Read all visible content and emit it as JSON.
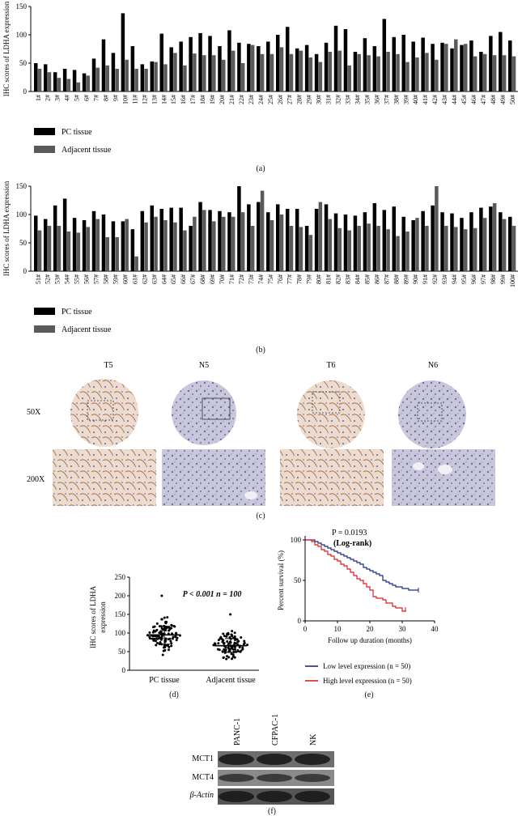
{
  "figure": {
    "captions": {
      "a": "(a)",
      "b": "(b)",
      "c": "(c)",
      "d": "(d)",
      "e": "(e)",
      "f": "(f)"
    }
  },
  "colors": {
    "pc": "#000000",
    "adjacent": "#5a5a5a",
    "low": "#1a2a80",
    "high": "#d81f26",
    "stain_brown": "#a86a48",
    "stain_blue": "#8d8cb6"
  },
  "chart_data": [
    {
      "id": "a",
      "type": "bar",
      "ylabel": "IHC scores of LDHA expression",
      "ylim": [
        0,
        150
      ],
      "yticks": [
        0,
        50,
        100,
        150
      ],
      "categories": [
        "1#",
        "2#",
        "3#",
        "4#",
        "5#",
        "6#",
        "7#",
        "8#",
        "9#",
        "10#",
        "11#",
        "12#",
        "13#",
        "14#",
        "15#",
        "16#",
        "17#",
        "18#",
        "19#",
        "20#",
        "21#",
        "22#",
        "23#",
        "24#",
        "25#",
        "26#",
        "27#",
        "28#",
        "29#",
        "30#",
        "31#",
        "32#",
        "33#",
        "34#",
        "35#",
        "36#",
        "37#",
        "38#",
        "39#",
        "40#",
        "41#",
        "42#",
        "43#",
        "44#",
        "45#",
        "46#",
        "47#",
        "48#",
        "49#",
        "50#"
      ],
      "series": [
        {
          "name": "PC tissue",
          "values": [
            50,
            48,
            34,
            40,
            38,
            32,
            58,
            92,
            68,
            138,
            80,
            48,
            53,
            102,
            78,
            88,
            96,
            103,
            98,
            80,
            108,
            86,
            84,
            80,
            88,
            100,
            114,
            76,
            82,
            66,
            86,
            116,
            110,
            70,
            94,
            80,
            128,
            96,
            100,
            88,
            95,
            84,
            86,
            76,
            82,
            90,
            70,
            98,
            105,
            90
          ]
        },
        {
          "name": "Adjacent tissue",
          "values": [
            40,
            34,
            24,
            22,
            16,
            28,
            42,
            46,
            40,
            56,
            40,
            40,
            52,
            48,
            68,
            46,
            67,
            64,
            64,
            56,
            72,
            50,
            82,
            66,
            66,
            78,
            66,
            72,
            60,
            52,
            70,
            72,
            46,
            66,
            64,
            62,
            70,
            66,
            52,
            60,
            68,
            56,
            84,
            92,
            84,
            62,
            66,
            64,
            64,
            62
          ]
        }
      ],
      "legend": [
        "PC tissue",
        "Adjacent tissue"
      ]
    },
    {
      "id": "b",
      "type": "bar",
      "ylabel": "IHC scores of LDHA expression",
      "ylim": [
        0,
        150
      ],
      "yticks": [
        0,
        50,
        100,
        150
      ],
      "categories": [
        "51#",
        "52#",
        "53#",
        "54#",
        "55#",
        "56#",
        "57#",
        "58#",
        "59#",
        "60#",
        "61#",
        "62#",
        "63#",
        "64#",
        "65#",
        "66#",
        "67#",
        "68#",
        "69#",
        "70#",
        "71#",
        "72#",
        "73#",
        "74#",
        "75#",
        "76#",
        "77#",
        "78#",
        "79#",
        "80#",
        "81#",
        "82#",
        "83#",
        "84#",
        "85#",
        "86#",
        "87#",
        "88#",
        "89#",
        "90#",
        "91#",
        "92#",
        "93#",
        "94#",
        "95#",
        "96#",
        "97#",
        "98#",
        "99#",
        "100#"
      ],
      "series": [
        {
          "name": "PC tissue",
          "values": [
            98,
            92,
            116,
            128,
            94,
            90,
            106,
            100,
            88,
            88,
            74,
            106,
            116,
            110,
            112,
            112,
            80,
            122,
            108,
            106,
            104,
            150,
            118,
            122,
            104,
            118,
            110,
            110,
            80,
            110,
            118,
            102,
            100,
            98,
            104,
            120,
            108,
            114,
            96,
            90,
            106,
            116,
            104,
            102,
            94,
            104,
            112,
            114,
            104,
            96
          ]
        },
        {
          "name": "Adjacent tissue",
          "values": [
            72,
            80,
            80,
            70,
            68,
            78,
            92,
            60,
            60,
            92,
            26,
            86,
            96,
            90,
            86,
            72,
            96,
            108,
            88,
            96,
            96,
            104,
            80,
            142,
            90,
            100,
            80,
            78,
            64,
            122,
            92,
            76,
            72,
            80,
            84,
            80,
            74,
            62,
            70,
            94,
            80,
            150,
            80,
            78,
            74,
            76,
            94,
            120,
            92,
            80
          ]
        }
      ],
      "legend": [
        "PC tissue",
        "Adjacent tissue"
      ]
    },
    {
      "id": "d",
      "type": "scatter",
      "ylabel": "IHC scores of LDHA expression",
      "ylim": [
        0,
        250
      ],
      "yticks": [
        0,
        50,
        100,
        150,
        200,
        250
      ],
      "categories": [
        "PC tissue",
        "Adjacent tissue"
      ],
      "annotation": "P < 0.001 n = 100",
      "summary": [
        {
          "group": "PC tissue",
          "mean": 95,
          "sd_low": 70,
          "sd_high": 118,
          "max": 200
        },
        {
          "group": "Adjacent tissue",
          "mean": 66,
          "sd_low": 48,
          "sd_high": 85,
          "max": 150
        }
      ]
    },
    {
      "id": "e",
      "type": "line",
      "xlabel": "Follow up duration (months)",
      "ylabel": "Percent survival (%)",
      "xlim": [
        0,
        40
      ],
      "ylim": [
        0,
        100
      ],
      "xticks": [
        0,
        10,
        20,
        30,
        40
      ],
      "yticks": [
        0,
        50,
        100
      ],
      "annotation_p": "P = 0.0193",
      "annotation_test": "(Log-rank)",
      "series": [
        {
          "name": "Low level expression (n = 50)",
          "x": [
            0,
            2,
            3,
            4,
            5,
            6,
            7,
            8,
            9,
            10,
            11,
            12,
            13,
            14,
            15,
            16,
            17,
            18,
            19,
            20,
            21,
            22,
            23,
            24,
            25,
            26,
            27,
            28,
            30,
            32,
            35
          ],
          "y": [
            100,
            100,
            98,
            96,
            94,
            92,
            90,
            88,
            86,
            84,
            82,
            80,
            78,
            76,
            74,
            72,
            70,
            66,
            64,
            62,
            60,
            58,
            56,
            50,
            48,
            46,
            44,
            42,
            40,
            38,
            38
          ]
        },
        {
          "name": "High level expression (n = 50)",
          "x": [
            0,
            2,
            3,
            4,
            5,
            6,
            7,
            8,
            9,
            10,
            11,
            12,
            13,
            14,
            15,
            16,
            17,
            18,
            19,
            20,
            21,
            22,
            24,
            25,
            27,
            28,
            30,
            31
          ],
          "y": [
            100,
            98,
            94,
            92,
            88,
            86,
            82,
            80,
            76,
            74,
            70,
            68,
            64,
            60,
            56,
            52,
            50,
            46,
            42,
            38,
            30,
            28,
            26,
            22,
            18,
            16,
            12,
            14
          ]
        }
      ],
      "legend": [
        "Low level expression (n = 50)",
        "High level expression (n = 50)"
      ]
    }
  ],
  "panel_c": {
    "columns": [
      "T5",
      "N5",
      "T6",
      "N6"
    ],
    "rows": [
      "50X",
      "200X"
    ]
  },
  "panel_f": {
    "lanes": [
      "PANC-1",
      "CFPAC-1",
      "NK"
    ],
    "bands": [
      "MCT1",
      "MCT4",
      "β-Actin"
    ]
  }
}
